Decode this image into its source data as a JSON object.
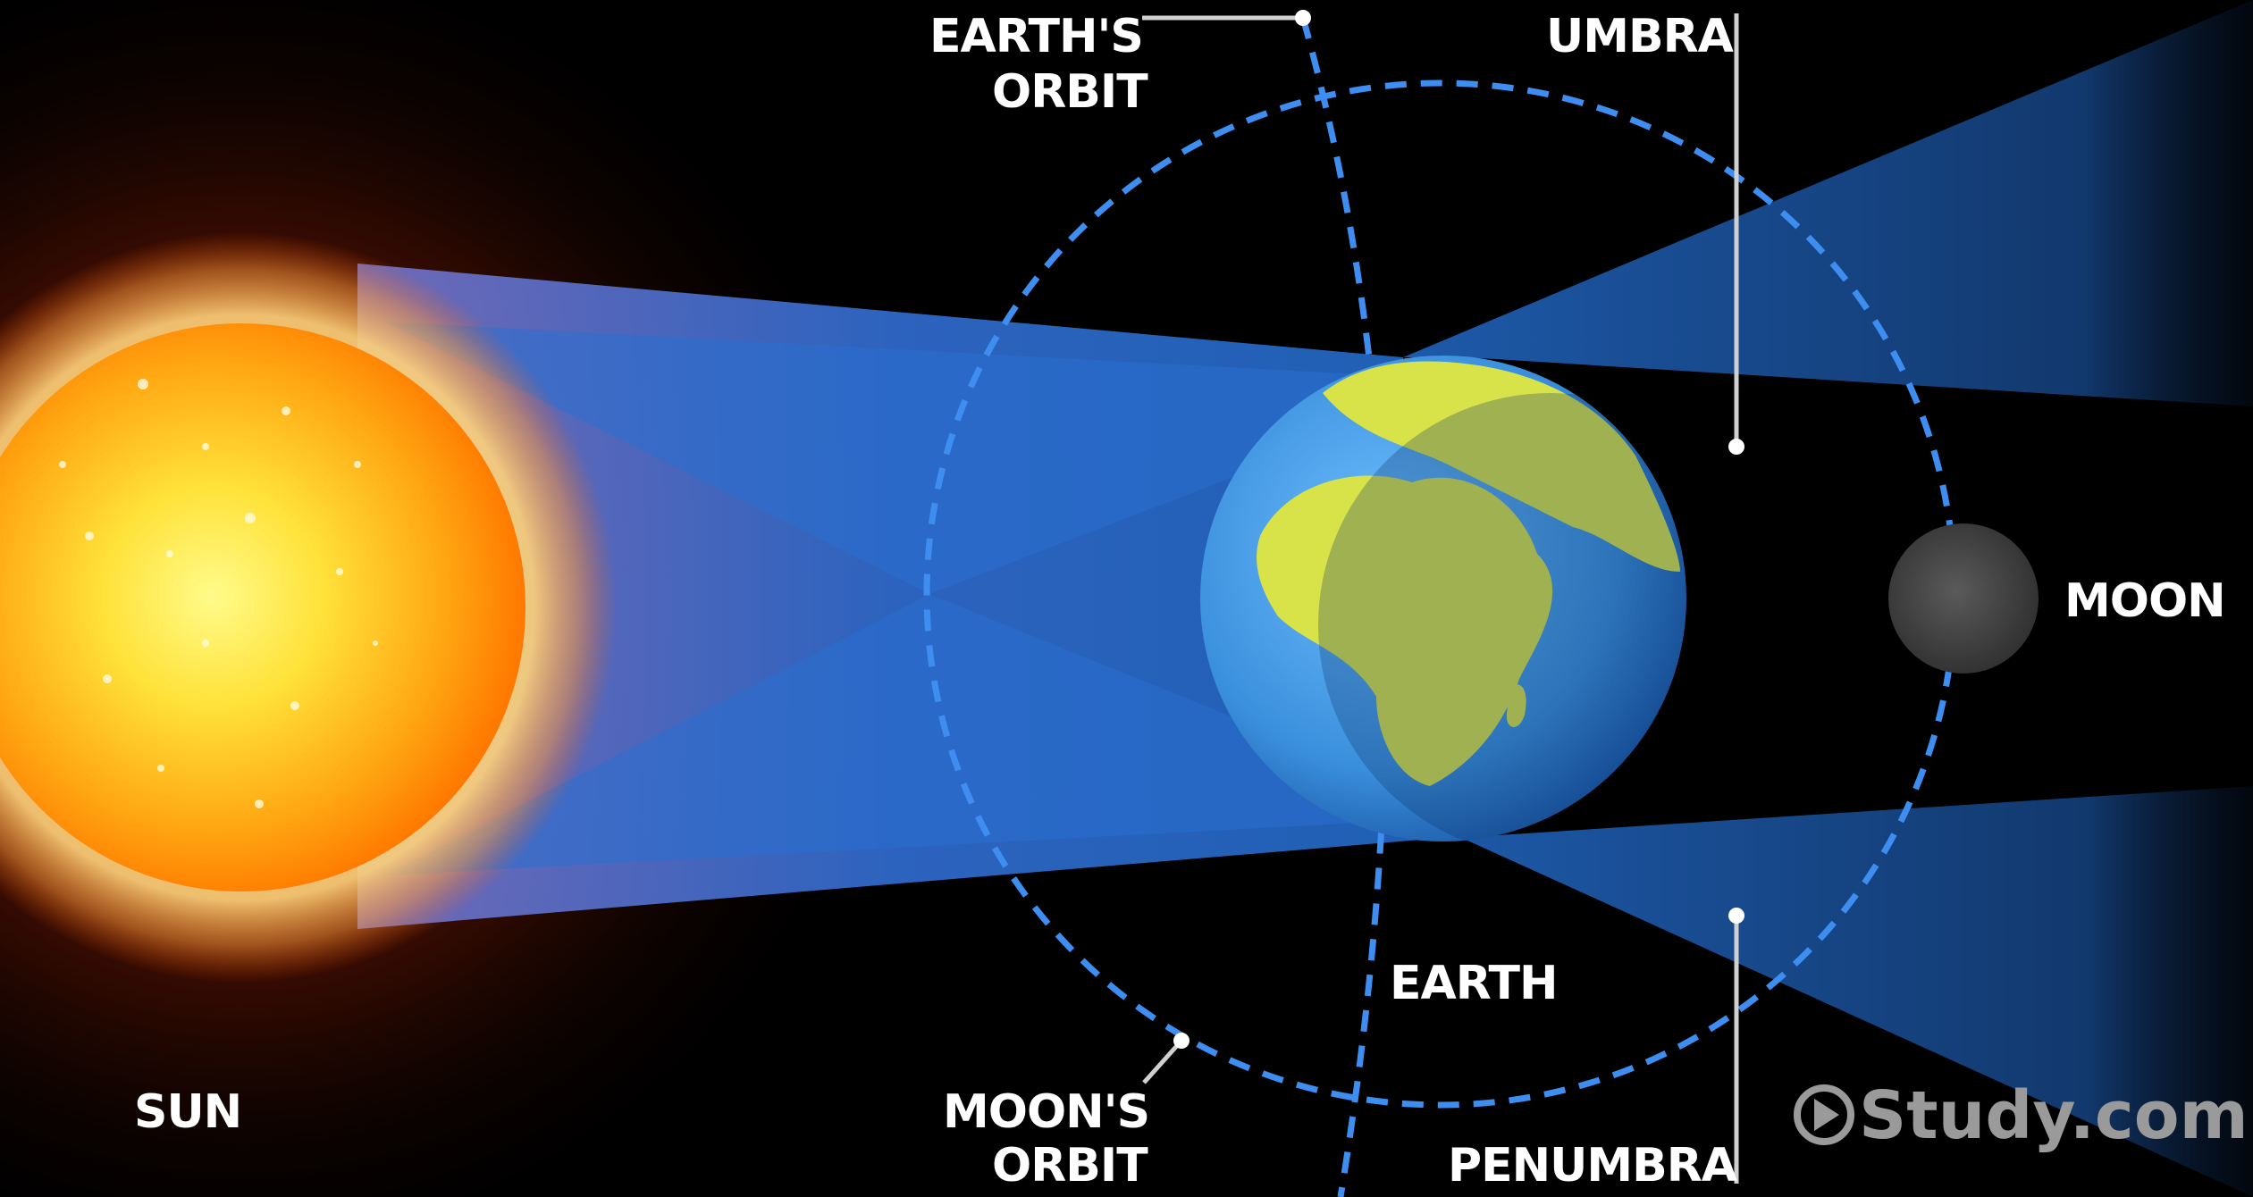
{
  "labels": {
    "earths_orbit_line1": "EARTH'S",
    "earths_orbit_line2": "ORBIT",
    "umbra": "UMBRA",
    "moon": "MOON",
    "sun": "SUN",
    "earth": "EARTH",
    "moons_orbit_line1": "MOON'S",
    "moons_orbit_line2": "ORBIT",
    "penumbra": "PENUMBRA"
  },
  "watermark": {
    "text": "Study.com",
    "icon": "play-circle-icon"
  },
  "colors": {
    "background": "#000000",
    "shadow_cone": "#1f5fb4",
    "orbit_dash": "#3d8ef0",
    "sun_core": "#fff06a",
    "sun_edge": "#ff8a00",
    "earth_ocean": "#3f9ae6",
    "earth_land": "#d8e34a",
    "moon": "#4a4a4a",
    "leader_lines": "#d0d0d0"
  }
}
